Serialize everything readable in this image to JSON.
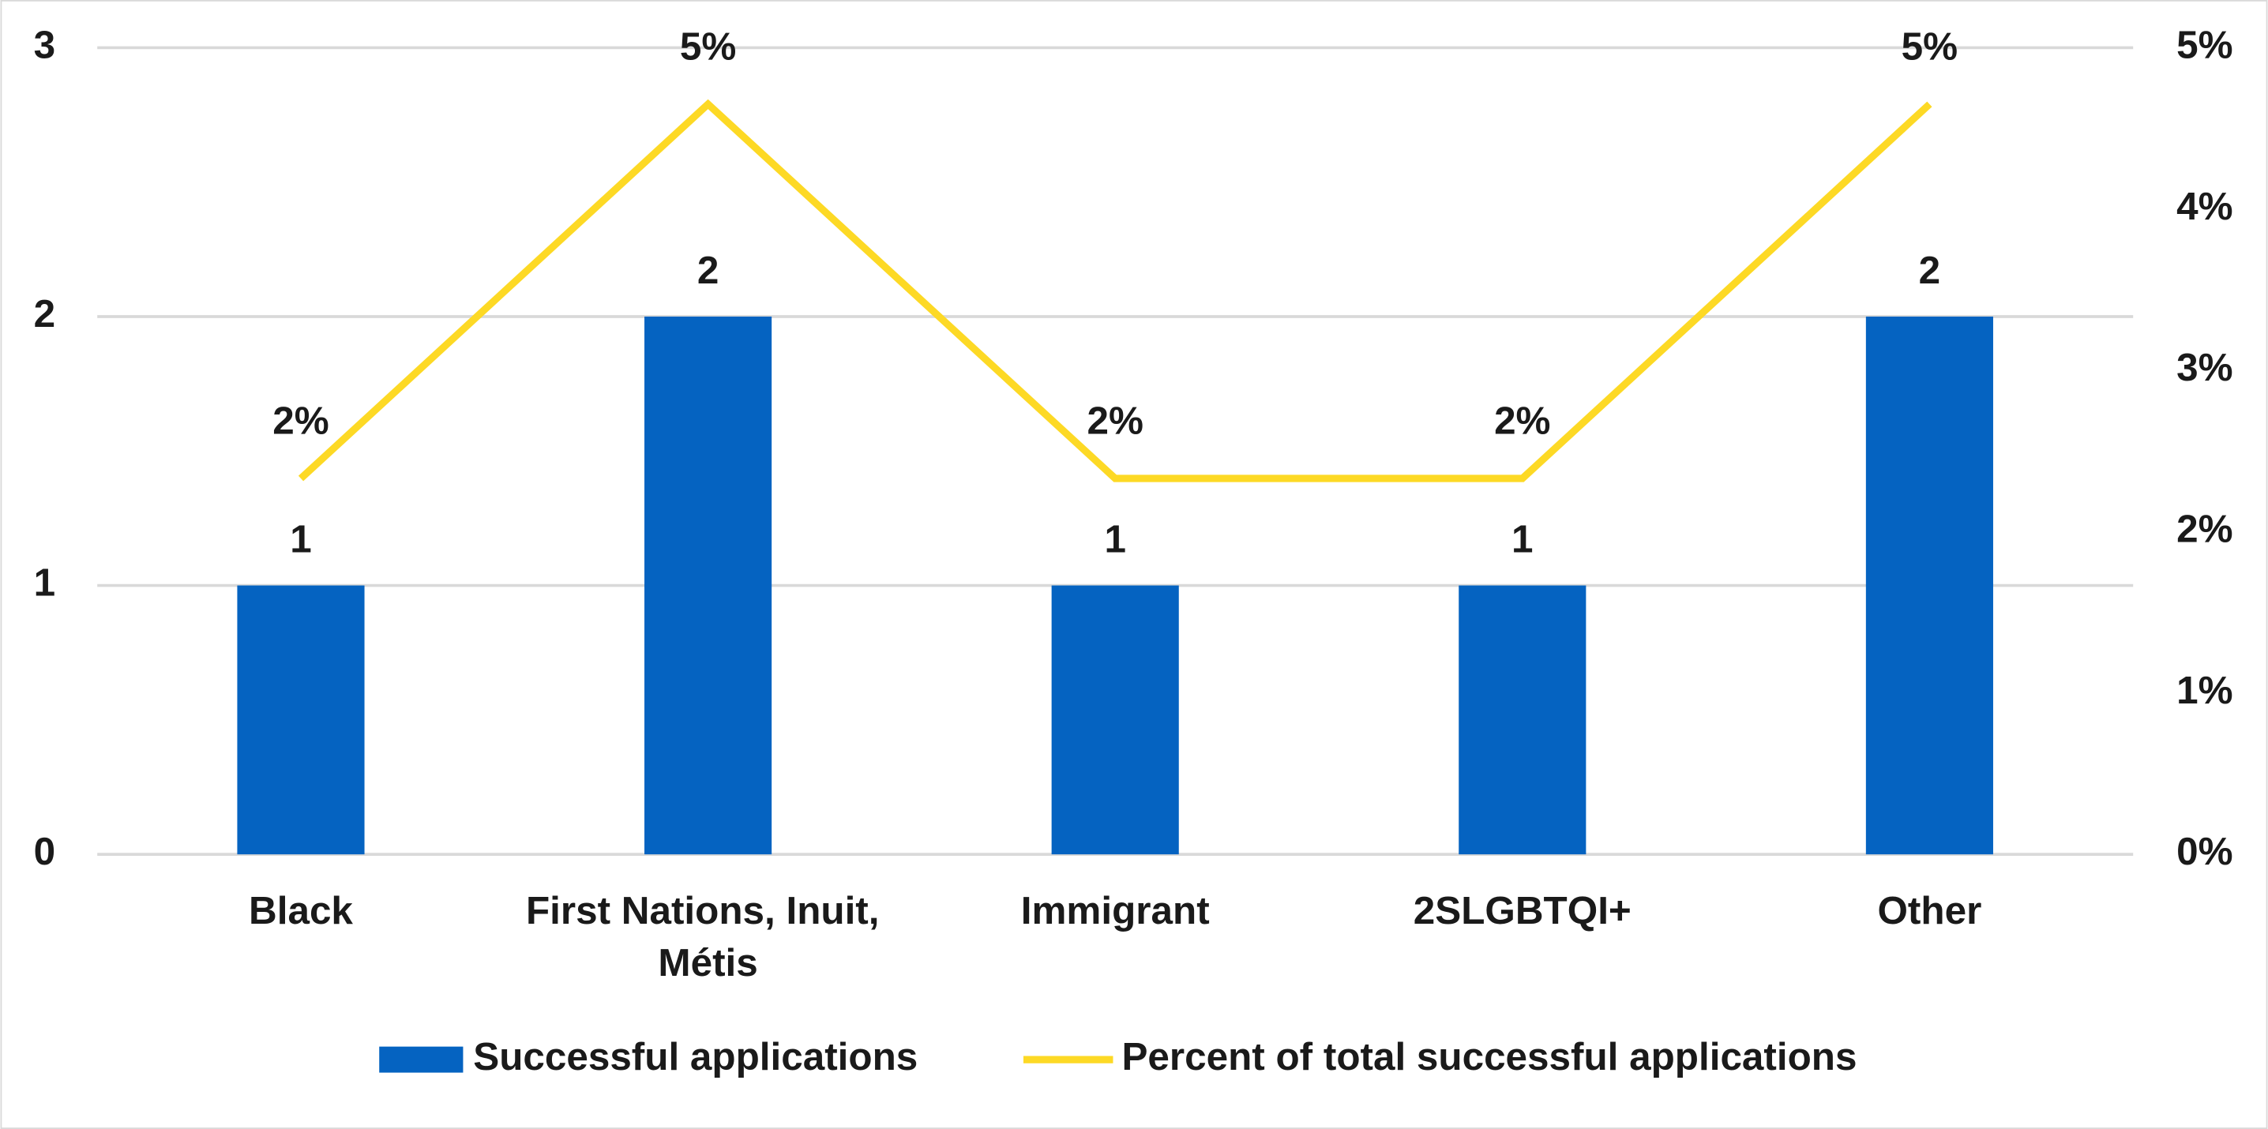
{
  "chart_data": {
    "type": "bar-line",
    "categories": [
      "Black",
      "First Nations, Inuit, Métis",
      "Immigrant",
      "2SLGBTQI+",
      "Other"
    ],
    "series": [
      {
        "name": "Successful applications",
        "type": "bar",
        "color": "#0563c1",
        "values": [
          1,
          2,
          1,
          1,
          2
        ]
      },
      {
        "name": "Percent of total successful applications",
        "type": "line",
        "axis": "y2",
        "color": "#fdd925",
        "values": [
          2.33,
          4.65,
          2.33,
          2.33,
          4.65
        ],
        "value_labels": [
          "2%",
          "5%",
          "2%",
          "2%",
          "5%"
        ]
      }
    ],
    "ylim": [
      0,
      3
    ],
    "yticks": [
      0,
      1,
      2,
      3
    ],
    "y2lim": [
      0,
      5
    ],
    "y2ticks": [
      {
        "value": 0,
        "label": "0%"
      },
      {
        "value": 1,
        "label": "1%"
      },
      {
        "value": 2,
        "label": "2%"
      },
      {
        "value": 3,
        "label": "3%"
      },
      {
        "value": 4,
        "label": "4%"
      },
      {
        "value": 5,
        "label": "5%"
      }
    ],
    "grid": true,
    "legend": "bottom"
  }
}
